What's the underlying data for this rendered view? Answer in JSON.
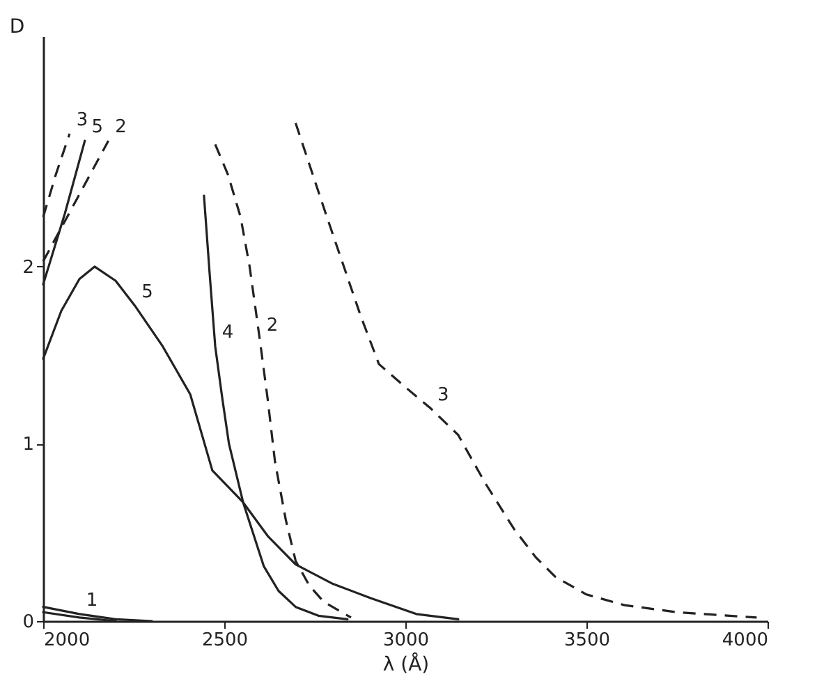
{
  "chart_data": {
    "type": "line",
    "xlabel": "λ (Å)",
    "ylabel": "D",
    "xlim": [
      2000,
      4000
    ],
    "ylim": [
      0,
      3.3
    ],
    "xticks": [
      2000,
      2500,
      3000,
      3500,
      4000
    ],
    "yticks": [
      0,
      1,
      2
    ],
    "grid": false,
    "marker": "none",
    "series": [
      {
        "color": "#222222",
        "line_style": "solid",
        "x": [
          2000,
          2050,
          2100,
          2142,
          2200,
          2253,
          2330,
          2406,
          2467,
          2552,
          2620,
          2697,
          2800,
          2904,
          3030,
          3146
        ],
        "values": [
          1.48,
          1.75,
          1.93,
          2.0,
          1.92,
          1.78,
          1.55,
          1.28,
          0.85,
          0.67,
          0.48,
          0.32,
          0.21,
          0.13,
          0.04,
          0.01
        ]
      },
      {
        "color": "#222222",
        "line_style": "solid",
        "x": [
          2444,
          2460,
          2475,
          2495,
          2513,
          2552,
          2609,
          2650,
          2697,
          2760,
          2840
        ],
        "values": [
          2.4,
          1.95,
          1.55,
          1.25,
          1.0,
          0.67,
          0.31,
          0.17,
          0.08,
          0.03,
          0.01
        ]
      },
      {
        "color": "#222222",
        "line_style": "dashed",
        "x": [
          2475,
          2510,
          2545,
          2570,
          2598,
          2620,
          2640,
          2670,
          2697,
          2735,
          2774,
          2850
        ],
        "values": [
          2.69,
          2.52,
          2.28,
          2.0,
          1.59,
          1.25,
          0.9,
          0.57,
          0.34,
          0.2,
          0.11,
          0.02
        ]
      },
      {
        "color": "#222222",
        "line_style": "dashed",
        "x": [
          2697,
          2780,
          2877,
          2927,
          3000,
          3070,
          3146,
          3220,
          3300,
          3360,
          3414,
          3500,
          3605,
          3750,
          3970
        ],
        "values": [
          2.81,
          2.3,
          1.72,
          1.45,
          1.32,
          1.2,
          1.05,
          0.78,
          0.52,
          0.36,
          0.25,
          0.15,
          0.09,
          0.05,
          0.02
        ]
      },
      {
        "color": "#222222",
        "line_style": "dashed",
        "x": [
          2000,
          2035,
          2073
        ],
        "values": [
          2.28,
          2.52,
          2.75
        ]
      },
      {
        "color": "#222222",
        "line_style": "solid",
        "x": [
          2000,
          2060,
          2115
        ],
        "values": [
          1.9,
          2.3,
          2.71
        ]
      },
      {
        "color": "#222222",
        "line_style": "dashed",
        "x": [
          2000,
          2090,
          2180
        ],
        "values": [
          2.03,
          2.37,
          2.71
        ]
      },
      {
        "color": "#222222",
        "line_style": "solid",
        "x": [
          2000,
          2100,
          2200,
          2300
        ],
        "values": [
          0.08,
          0.04,
          0.01,
          0.0
        ]
      },
      {
        "color": "#222222",
        "line_style": "solid",
        "x": [
          2000,
          2100,
          2200
        ],
        "values": [
          0.05,
          0.02,
          0.0
        ]
      }
    ],
    "annotations": [
      {
        "text": "5",
        "x": 2253,
        "y": 1.78
      },
      {
        "text": "4",
        "x": 2475,
        "y": 1.55
      },
      {
        "text": "2",
        "x": 2598,
        "y": 1.59
      },
      {
        "text": "3",
        "x": 3070,
        "y": 1.2
      },
      {
        "text": "3",
        "x": 2073,
        "y": 2.75
      },
      {
        "text": "5",
        "x": 2115,
        "y": 2.71
      },
      {
        "text": "2",
        "x": 2180,
        "y": 2.71
      },
      {
        "text": "1",
        "x": 2100,
        "y": 0.04
      }
    ]
  }
}
